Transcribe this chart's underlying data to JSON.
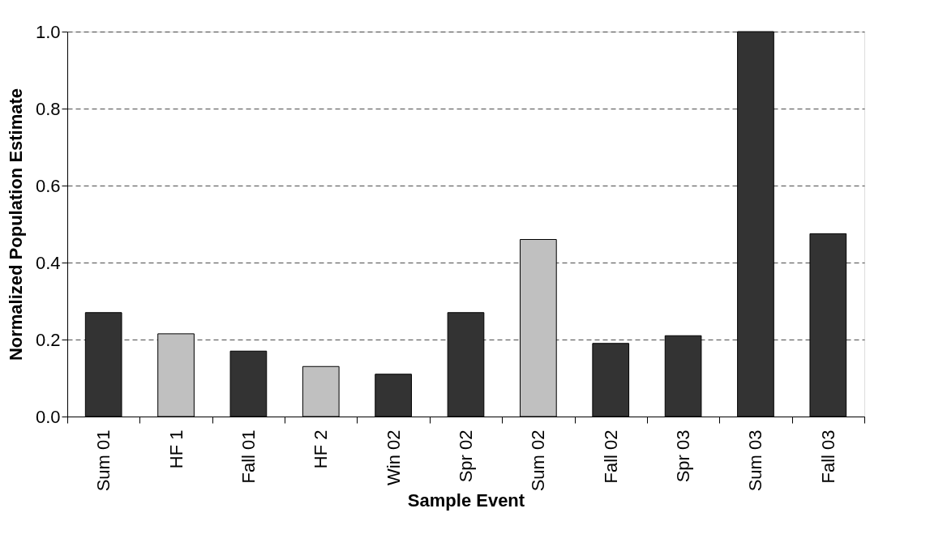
{
  "chart_data": {
    "type": "bar",
    "xlabel": "Sample Event",
    "ylabel": "Normalized Population Estimate",
    "categories": [
      "Sum 01",
      "HF 1",
      "Fall 01",
      "HF 2",
      "Win 02",
      "Spr 02",
      "Sum 02",
      "Fall 02",
      "Spr 03",
      "Sum 03",
      "Fall 03"
    ],
    "values": [
      0.27,
      0.215,
      0.17,
      0.13,
      0.11,
      0.27,
      0.46,
      0.19,
      0.21,
      1.0,
      0.475
    ],
    "colors": [
      "#333333",
      "#c0c0c0",
      "#333333",
      "#c0c0c0",
      "#333333",
      "#333333",
      "#c0c0c0",
      "#333333",
      "#333333",
      "#333333",
      "#333333"
    ],
    "ylim": [
      0,
      1.0
    ],
    "yticks": [
      {
        "value": 0,
        "label": "0.0"
      },
      {
        "value": 0.2,
        "label": "0.2"
      },
      {
        "value": 0.4,
        "label": "0.4"
      },
      {
        "value": 0.6,
        "label": "0.6"
      },
      {
        "value": 0.8,
        "label": "0.8"
      },
      {
        "value": 1.0,
        "label": "1.0"
      }
    ],
    "grid": "y"
  }
}
